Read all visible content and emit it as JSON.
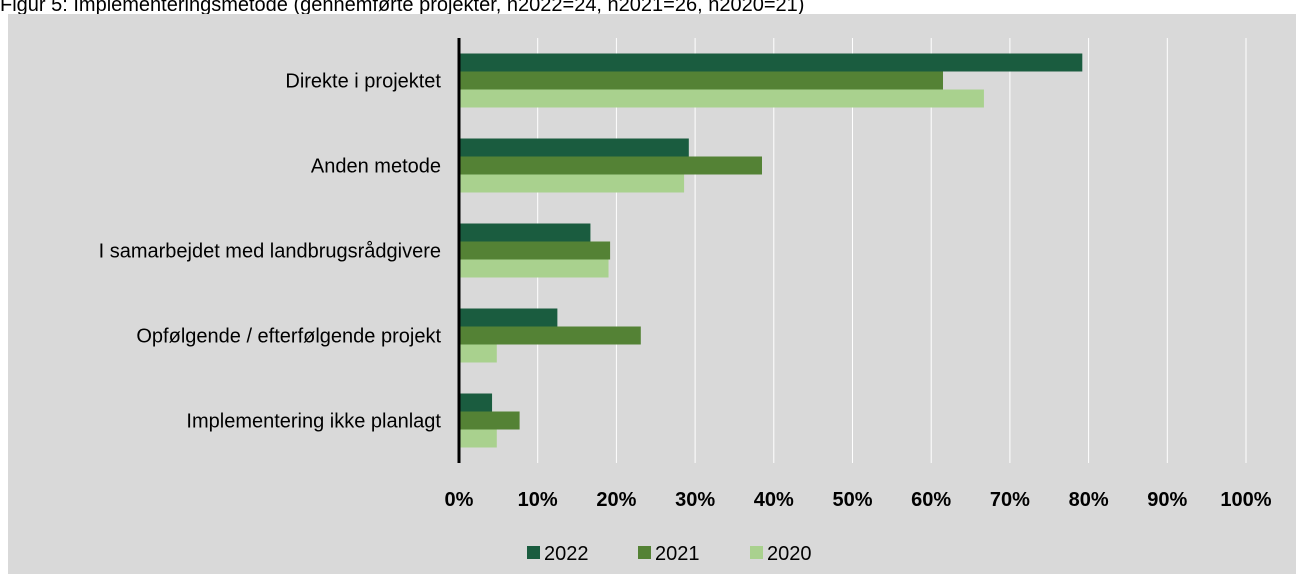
{
  "caption": "Figur 5: Implementeringsmetode (gennemførte projekter, n2022=24, n2021=26, n2020=21)",
  "chart_data": {
    "type": "bar",
    "orientation": "horizontal",
    "categories": [
      "Direkte i projektet",
      "Anden metode",
      "I samarbejdet med landbrugsrådgivere",
      "Opfølgende / efterfølgende projekt",
      "Implementering ikke planlagt"
    ],
    "series": [
      {
        "name": "2022",
        "color": "#1a5c3f",
        "values": [
          79.2,
          29.2,
          16.7,
          12.5,
          4.2
        ]
      },
      {
        "name": "2021",
        "color": "#548235",
        "values": [
          61.5,
          38.5,
          19.2,
          23.1,
          7.7
        ]
      },
      {
        "name": "2020",
        "color": "#a9d18e",
        "values": [
          66.7,
          28.6,
          19.0,
          4.8,
          4.8
        ]
      }
    ],
    "xlim": [
      0,
      100
    ],
    "xticks": [
      0,
      10,
      20,
      30,
      40,
      50,
      60,
      70,
      80,
      90,
      100
    ],
    "tick_suffix": "%",
    "grid": "vertical",
    "legend": "bottom",
    "background": "#d9d9d9",
    "gridline_color": "#ffffff"
  }
}
